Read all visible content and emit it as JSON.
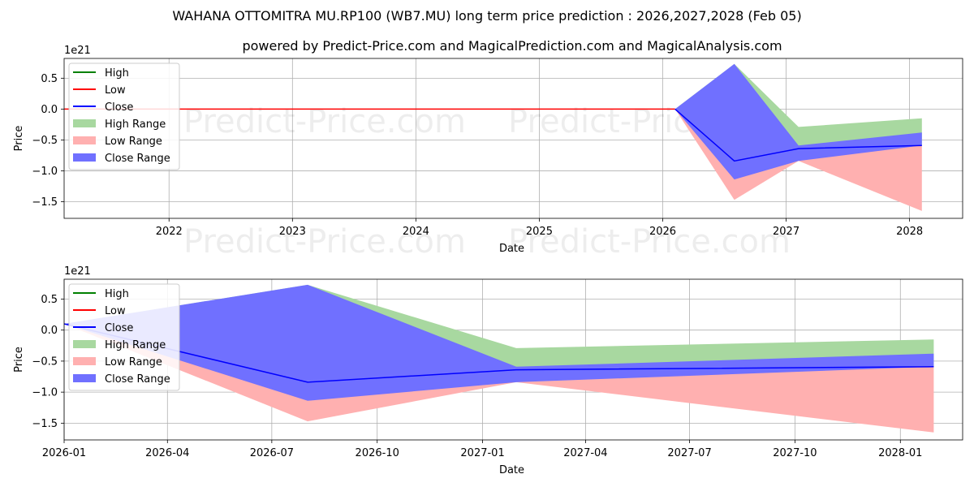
{
  "title": "WAHANA OTTOMITRA MU.RP100 (WB7.MU) long term price prediction : 2026,2027,2028 (Feb 05)",
  "subtitle": "powered by Predict-Price.com and MagicalPrediction.com and MagicalAnalysis.com",
  "watermark": "Predict-Price.com",
  "colors": {
    "high": "#008000",
    "low": "#ff0000",
    "close": "#0000ff",
    "high_range": "#a8d8a0",
    "low_range": "#ffb0b0",
    "close_range": "#7070ff",
    "grid": "#b0b0b0"
  },
  "chart_data": [
    {
      "type": "line",
      "panel": "top",
      "xlabel": "Date",
      "ylabel": "Price",
      "y_multiplier": "1e21",
      "xlim": [
        2021.15,
        2028.43
      ],
      "ylim": [
        -1.77,
        0.82
      ],
      "x_ticks": [
        {
          "value": 2022,
          "label": "2022"
        },
        {
          "value": 2023,
          "label": "2023"
        },
        {
          "value": 2024,
          "label": "2024"
        },
        {
          "value": 2025,
          "label": "2025"
        },
        {
          "value": 2026,
          "label": "2026"
        },
        {
          "value": 2027,
          "label": "2027"
        },
        {
          "value": 2028,
          "label": "2028"
        }
      ],
      "y_ticks": [
        {
          "value": 0.5,
          "label": "0.5"
        },
        {
          "value": 0.0,
          "label": "0.0"
        },
        {
          "value": -0.5,
          "label": "−0.5"
        },
        {
          "value": -1.0,
          "label": "−1.0"
        },
        {
          "value": -1.5,
          "label": "−1.5"
        }
      ],
      "legend": [
        "High",
        "Low",
        "Close",
        "High Range",
        "Low Range",
        "Close Range"
      ],
      "legend_location": "upper-left",
      "history": {
        "x": [
          2021.15,
          2026.1
        ],
        "values": [
          0.0,
          0.0
        ]
      },
      "x": [
        2026.1,
        2026.58,
        2027.1,
        2028.1
      ],
      "close": [
        0.0,
        -0.84,
        -0.64,
        -0.59
      ],
      "high_range": {
        "lower": [
          0.0,
          -0.84,
          -0.64,
          -0.59
        ],
        "upper": [
          0.0,
          0.73,
          -0.29,
          -0.15
        ]
      },
      "low_range": {
        "lower": [
          0.0,
          -1.47,
          -0.84,
          -1.65
        ],
        "upper": [
          0.0,
          -0.84,
          -0.64,
          -0.59
        ]
      },
      "close_range": {
        "lower": [
          0.0,
          -1.14,
          -0.84,
          -0.59
        ],
        "upper": [
          0.0,
          0.73,
          -0.59,
          -0.38
        ]
      }
    },
    {
      "type": "line",
      "panel": "bottom",
      "xlabel": "Date",
      "ylabel": "Price",
      "y_multiplier": "1e21",
      "xlim": [
        0.0,
        25.83
      ],
      "ylim": [
        -1.77,
        0.82
      ],
      "x_ticks": [
        {
          "value": 0.0,
          "label": "2026-01"
        },
        {
          "value": 2.97,
          "label": "2026-04"
        },
        {
          "value": 5.97,
          "label": "2026-07"
        },
        {
          "value": 9.0,
          "label": "2026-10"
        },
        {
          "value": 12.03,
          "label": "2027-01"
        },
        {
          "value": 14.99,
          "label": "2027-04"
        },
        {
          "value": 17.98,
          "label": "2027-07"
        },
        {
          "value": 21.01,
          "label": "2027-10"
        },
        {
          "value": 24.04,
          "label": "2028-01"
        }
      ],
      "y_ticks": [
        {
          "value": 0.5,
          "label": "0.5"
        },
        {
          "value": 0.0,
          "label": "0.0"
        },
        {
          "value": -0.5,
          "label": "−0.5"
        },
        {
          "value": -1.0,
          "label": "−1.0"
        },
        {
          "value": -1.5,
          "label": "−1.5"
        }
      ],
      "legend": [
        "High",
        "Low",
        "Close",
        "High Range",
        "Low Range",
        "Close Range"
      ],
      "legend_location": "upper-left",
      "x": [
        0.0,
        7.0,
        13.0,
        25.0
      ],
      "close": [
        0.1,
        -0.84,
        -0.64,
        -0.59
      ],
      "high_range": {
        "lower": [
          0.1,
          -0.84,
          -0.64,
          -0.59
        ],
        "upper": [
          0.1,
          0.73,
          -0.29,
          -0.15
        ]
      },
      "low_range": {
        "lower": [
          0.1,
          -1.47,
          -0.84,
          -1.65
        ],
        "upper": [
          0.1,
          -0.84,
          -0.64,
          -0.59
        ]
      },
      "close_range": {
        "lower": [
          0.1,
          -1.14,
          -0.84,
          -0.59
        ],
        "upper": [
          0.1,
          0.73,
          -0.59,
          -0.38
        ]
      }
    }
  ]
}
